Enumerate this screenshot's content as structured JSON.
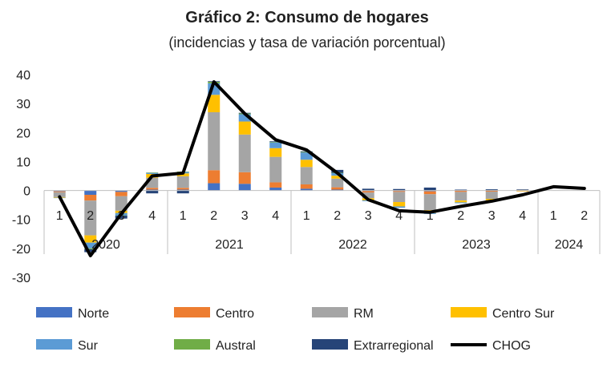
{
  "chart_data": {
    "type": "bar",
    "stacked": true,
    "title": "Gráfico 2: Consumo de hogares",
    "subtitle": "(incidencias y tasa de variación porcentual)",
    "categories": [
      "1",
      "2",
      "3",
      "4",
      "1",
      "2",
      "3",
      "4",
      "1",
      "2",
      "3",
      "4",
      "1",
      "2",
      "3",
      "4",
      "1",
      "2"
    ],
    "groups": [
      {
        "label": "2020",
        "count": 4
      },
      {
        "label": "2021",
        "count": 4
      },
      {
        "label": "2022",
        "count": 4
      },
      {
        "label": "2023",
        "count": 4
      },
      {
        "label": "2024",
        "count": 2
      }
    ],
    "yticks": [
      40,
      30,
      20,
      10,
      0,
      -10,
      -20,
      -30
    ],
    "ylim": [
      -30,
      40
    ],
    "series": [
      {
        "name": "Norte",
        "color": "#4472C4",
        "values": [
          -0.3,
          -1.5,
          -0.5,
          0.3,
          0.3,
          2.5,
          2.3,
          1.0,
          0.6,
          0.3,
          -0.2,
          -0.2,
          -0.3,
          -0.1,
          -0.1,
          -0.1,
          0,
          0
        ]
      },
      {
        "name": "Centro",
        "color": "#ED7D31",
        "values": [
          -0.3,
          -2.0,
          -1.5,
          0.6,
          0.6,
          4.5,
          4.0,
          1.8,
          1.5,
          0.8,
          -0.5,
          -0.3,
          -1.0,
          -0.4,
          -0.3,
          -0.1,
          0,
          0
        ]
      },
      {
        "name": "RM",
        "color": "#A5A5A5",
        "values": [
          -1.7,
          -12.0,
          -5.0,
          3.5,
          4.0,
          20.0,
          13.0,
          8.8,
          6.0,
          3.0,
          -2.0,
          -3.5,
          -5.5,
          -3.0,
          -2.5,
          0.3,
          0,
          0
        ]
      },
      {
        "name": "Centro Sur",
        "color": "#FFC000",
        "values": [
          -0.2,
          -2.5,
          -0.8,
          1.3,
          1.0,
          6.0,
          4.5,
          3.0,
          2.5,
          1.0,
          -0.7,
          -1.5,
          -1.0,
          -0.6,
          -0.5,
          -0.1,
          0,
          0
        ]
      },
      {
        "name": "Sur",
        "color": "#5B9BD5",
        "values": [
          -0.1,
          -2.0,
          -0.8,
          0.4,
          0.5,
          4.0,
          2.5,
          2.0,
          2.5,
          0.9,
          -0.3,
          -0.5,
          -0.3,
          -0.3,
          -0.3,
          0,
          0,
          0
        ]
      },
      {
        "name": "Austral",
        "color": "#70AD47",
        "values": [
          0,
          -0.3,
          -0.1,
          0.1,
          0.1,
          0.5,
          0.3,
          0.2,
          0.2,
          0.1,
          0,
          0,
          0,
          0,
          0,
          0,
          0,
          0
        ]
      },
      {
        "name": "Extrarregional",
        "color": "#264478",
        "values": [
          0,
          -1.0,
          -1.0,
          -1.0,
          -1.0,
          0.2,
          0.2,
          0.2,
          0.2,
          1.0,
          0.6,
          0.5,
          1.0,
          0.3,
          0.4,
          0.1,
          0,
          0
        ]
      }
    ],
    "line": {
      "name": "CHOG",
      "color": "#000000",
      "values": [
        -2.2,
        -22.5,
        -8.0,
        5.0,
        6.0,
        37.5,
        26.5,
        17.5,
        14.0,
        6.0,
        -3.2,
        -7.0,
        -7.5,
        -5.5,
        -3.7,
        -1.5,
        1.3,
        0.7
      ]
    },
    "legend_position": "bottom"
  }
}
